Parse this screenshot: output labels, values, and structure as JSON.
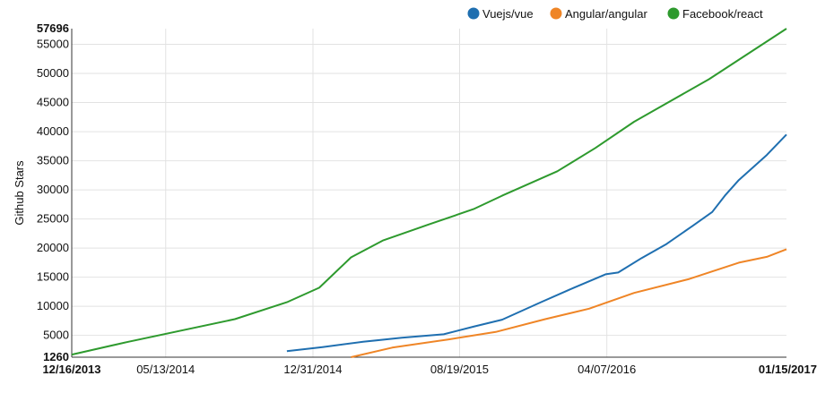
{
  "chart_data": {
    "type": "line",
    "ylabel": "Github Stars",
    "ylim": [
      1260,
      57696
    ],
    "yticks": [
      57696,
      55000,
      50000,
      45000,
      40000,
      35000,
      30000,
      25000,
      20000,
      15000,
      10000,
      5000,
      1260
    ],
    "ytick_labels": [
      "57696",
      "55000",
      "50000",
      "45000",
      "40000",
      "35000",
      "30000",
      "25000",
      "20000",
      "15000",
      "10000",
      "5000",
      "1260"
    ],
    "xlim": [
      "2013-12-16",
      "2017-01-15"
    ],
    "xticks": [
      "2013-12-16",
      "2014-05-13",
      "2014-12-31",
      "2015-08-19",
      "2016-04-07",
      "2017-01-15"
    ],
    "xtick_labels": [
      "12/16/2013",
      "05/13/2014",
      "12/31/2014",
      "08/19/2015",
      "04/07/2016",
      "01/15/2017"
    ],
    "grid": true,
    "legend": "top-right",
    "series": [
      {
        "name": "Vuejs/vue",
        "color": "#1f6fb0",
        "points": [
          [
            "2014-11-20",
            2300
          ],
          [
            "2015-01-15",
            3000
          ],
          [
            "2015-03-20",
            3900
          ],
          [
            "2015-05-20",
            4600
          ],
          [
            "2015-07-25",
            5200
          ],
          [
            "2015-09-10",
            6500
          ],
          [
            "2015-10-25",
            7700
          ],
          [
            "2015-12-25",
            10700
          ],
          [
            "2016-02-15",
            13200
          ],
          [
            "2016-04-05",
            15500
          ],
          [
            "2016-04-25",
            15800
          ],
          [
            "2016-06-01",
            18300
          ],
          [
            "2016-07-10",
            20700
          ],
          [
            "2016-08-20",
            23800
          ],
          [
            "2016-09-20",
            26200
          ],
          [
            "2016-10-10",
            29000
          ],
          [
            "2016-11-01",
            31700
          ],
          [
            "2016-12-15",
            36000
          ],
          [
            "2017-01-15",
            39500
          ]
        ]
      },
      {
        "name": "Angular/angular",
        "color": "#ef8526",
        "points": [
          [
            "2015-03-01",
            1260
          ],
          [
            "2015-05-05",
            2900
          ],
          [
            "2015-08-01",
            4300
          ],
          [
            "2015-10-15",
            5600
          ],
          [
            "2016-01-01",
            7800
          ],
          [
            "2016-03-10",
            9600
          ],
          [
            "2016-05-20",
            12300
          ],
          [
            "2016-08-15",
            14700
          ],
          [
            "2016-11-01",
            17500
          ],
          [
            "2016-12-15",
            18500
          ],
          [
            "2017-01-15",
            19800
          ]
        ]
      },
      {
        "name": "Facebook/react",
        "color": "#2e9a2e",
        "points": [
          [
            "2013-12-16",
            1700
          ],
          [
            "2014-03-15",
            3900
          ],
          [
            "2014-08-30",
            7800
          ],
          [
            "2014-11-20",
            10700
          ],
          [
            "2015-01-10",
            13200
          ],
          [
            "2015-02-03",
            15700
          ],
          [
            "2015-03-01",
            18400
          ],
          [
            "2015-04-20",
            21300
          ],
          [
            "2015-06-30",
            24000
          ],
          [
            "2015-09-10",
            26700
          ],
          [
            "2015-10-25",
            29000
          ],
          [
            "2016-01-20",
            33200
          ],
          [
            "2016-03-20",
            37200
          ],
          [
            "2016-05-20",
            41700
          ],
          [
            "2016-09-15",
            49000
          ],
          [
            "2017-01-15",
            57696
          ]
        ]
      }
    ]
  }
}
